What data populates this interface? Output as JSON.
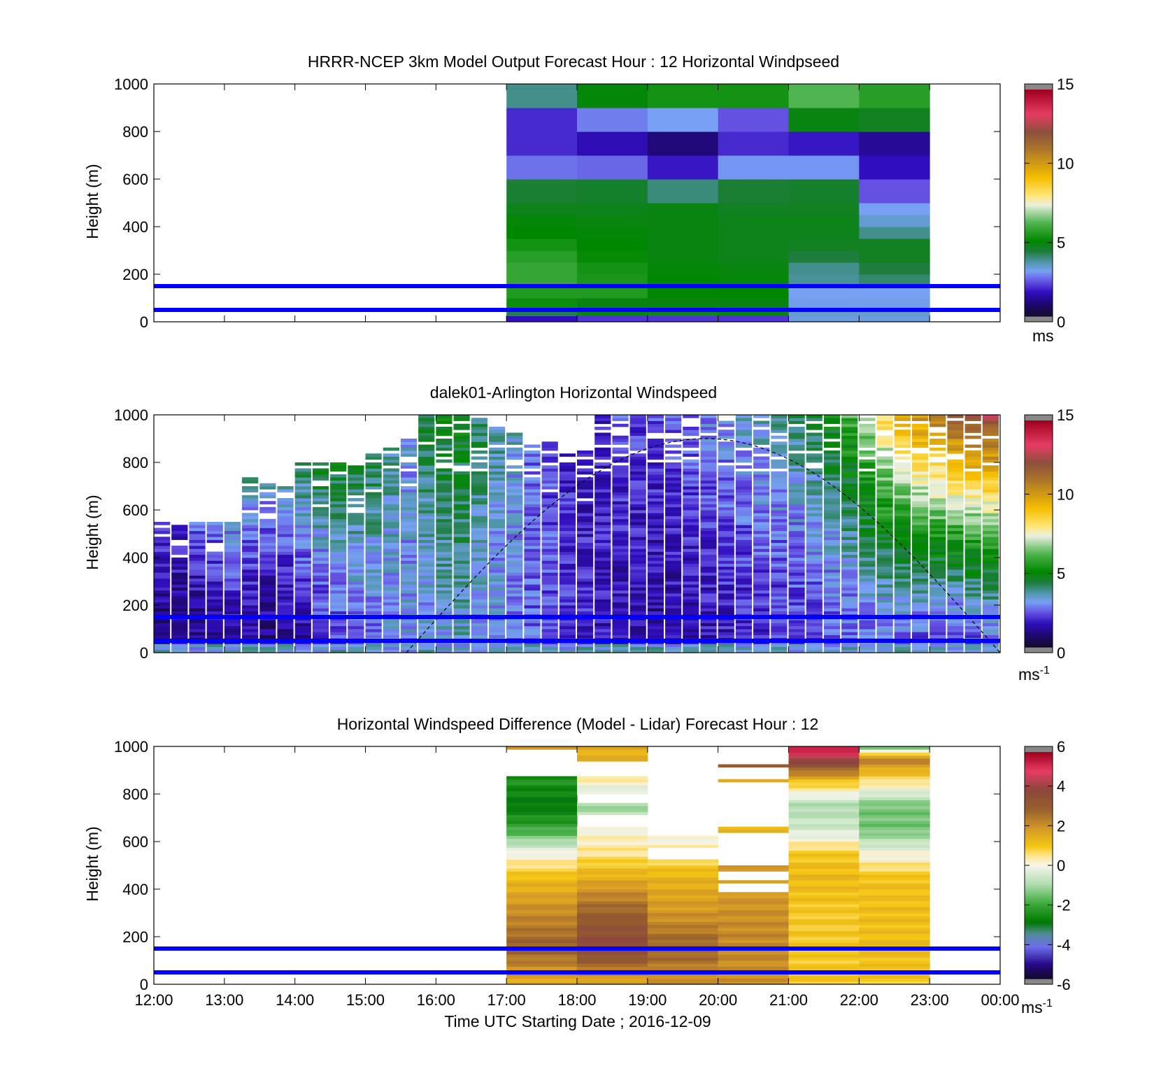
{
  "figure": {
    "xlabel": "Time UTC  Starting Date ; 2016-12-09",
    "x_tick_labels": [
      "12:00",
      "13:00",
      "14:00",
      "15:00",
      "16:00",
      "17:00",
      "18:00",
      "19:00",
      "20:00",
      "21:00",
      "22:00",
      "23:00",
      "00:00"
    ]
  },
  "colors": {
    "reference_lines": "#0000ff",
    "axes": "#000000",
    "background": "#ffffff",
    "nan_gray": "#888888"
  },
  "chart_data": [
    {
      "id": "model",
      "type": "heatmap",
      "title": "HRRR-NCEP 3km Model Output   Forecast Hour : 12 Horizontal Windpseed",
      "ylabel": "Height (m)",
      "xlabel": "",
      "xlim": [
        "12:00",
        "00:00"
      ],
      "ylim": [
        0,
        1000
      ],
      "y_ticks": [
        0,
        200,
        400,
        600,
        800,
        1000
      ],
      "reference_heights_m": [
        150,
        50
      ],
      "colorbar": {
        "range": [
          0,
          15
        ],
        "ticks": [
          0,
          5,
          10,
          15
        ],
        "unit": "ms",
        "unit_sup": ""
      },
      "time_columns": [
        {
          "start": "17:00",
          "end": "18:00"
        },
        {
          "start": "18:00",
          "end": "19:00"
        },
        {
          "start": "19:00",
          "end": "20:00"
        },
        {
          "start": "20:00",
          "end": "21:00"
        },
        {
          "start": "21:00",
          "end": "22:00"
        },
        {
          "start": "22:00",
          "end": "23:00"
        }
      ],
      "height_bins_m": [
        [
          0,
          25
        ],
        [
          25,
          50
        ],
        [
          50,
          100
        ],
        [
          100,
          150
        ],
        [
          150,
          200
        ],
        [
          200,
          250
        ],
        [
          250,
          300
        ],
        [
          300,
          350
        ],
        [
          350,
          400
        ],
        [
          400,
          450
        ],
        [
          450,
          500
        ],
        [
          500,
          600
        ],
        [
          600,
          700
        ],
        [
          700,
          800
        ],
        [
          800,
          900
        ],
        [
          900,
          1000
        ]
      ],
      "values_ms": [
        [
          1.6,
          2.0,
          2.0,
          2.0,
          3.2,
          3.2
        ],
        [
          4.2,
          4.8,
          4.6,
          4.8,
          3.3,
          3.3
        ],
        [
          5.2,
          4.8,
          4.8,
          4.8,
          3.1,
          3.1
        ],
        [
          5.5,
          5.5,
          5.0,
          5.0,
          3.0,
          3.0
        ],
        [
          5.8,
          5.4,
          5.0,
          4.9,
          3.7,
          4.0
        ],
        [
          5.8,
          5.3,
          4.9,
          4.8,
          3.8,
          4.3
        ],
        [
          5.6,
          5.1,
          4.8,
          4.7,
          4.3,
          4.6
        ],
        [
          5.3,
          5.0,
          4.8,
          4.7,
          4.6,
          4.6
        ],
        [
          5.0,
          4.9,
          4.8,
          4.7,
          4.7,
          3.8
        ],
        [
          4.9,
          4.8,
          4.8,
          4.7,
          4.7,
          3.3
        ],
        [
          4.7,
          4.7,
          4.8,
          4.6,
          4.6,
          3.0
        ],
        [
          4.4,
          4.5,
          3.9,
          4.4,
          4.5,
          2.3
        ],
        [
          2.6,
          2.5,
          1.7,
          2.9,
          2.9,
          1.6
        ],
        [
          1.9,
          1.5,
          0.9,
          1.9,
          1.7,
          1.2
        ],
        [
          1.9,
          2.7,
          3.0,
          2.3,
          4.8,
          4.6
        ],
        [
          3.8,
          4.9,
          5.3,
          5.3,
          6.2,
          5.6
        ]
      ]
    },
    {
      "id": "lidar",
      "type": "heatmap",
      "title": "dalek01-Arlington  Horizontal Windspeed",
      "ylabel": "Height (m)",
      "xlabel": "",
      "xlim": [
        "12:00",
        "00:00"
      ],
      "ylim": [
        0,
        1000
      ],
      "y_ticks": [
        0,
        200,
        400,
        600,
        800,
        1000
      ],
      "reference_heights_m": [
        150,
        50
      ],
      "colorbar": {
        "range": [
          0,
          15
        ],
        "ticks": [
          0,
          5,
          10,
          15
        ],
        "unit": "ms",
        "unit_sup": "-1"
      },
      "dashed_curve": "solar arc, peaks near 900 m around 19:50, meets 0 m near 15:35 and 00:00",
      "top_of_data_m": [
        540,
        530,
        550,
        560,
        540,
        730,
        710,
        700,
        790,
        800,
        790,
        780,
        840,
        860,
        900,
        1000,
        1000,
        1000,
        990,
        960,
        920,
        870,
        880,
        860,
        840,
        1000,
        1000,
        1000,
        1000,
        1000,
        1000,
        1000,
        1000,
        1000,
        1000,
        1000,
        1000,
        1000,
        1000,
        1000,
        1000,
        1000,
        1000,
        1000,
        1000,
        1000,
        1000,
        1000
      ],
      "wind_profile_ms": {
        "surface": [
          0.8,
          0.8,
          1.0,
          1.2,
          1.4,
          1.2,
          0.9,
          1.0,
          1.3,
          1.8,
          2.2,
          2.5,
          2.6,
          2.8,
          3.0,
          2.9,
          3.2,
          3.4,
          3.0,
          2.8,
          2.6,
          2.4,
          2.3,
          2.0,
          1.9,
          1.6,
          1.5,
          1.4,
          1.2,
          1.3,
          1.4,
          1.5,
          1.6,
          1.7,
          1.8,
          1.9,
          2.0,
          2.1,
          2.2,
          2.3,
          2.4,
          2.5,
          2.3,
          2.2,
          2.1,
          2.0,
          2.2,
          2.3
        ],
        "top": [
          2.2,
          2.0,
          2.4,
          2.8,
          3.0,
          3.6,
          3.3,
          3.4,
          4.2,
          4.6,
          4.7,
          4.4,
          4.5,
          3.8,
          3.0,
          4.4,
          4.7,
          4.8,
          4.2,
          3.6,
          3.2,
          2.6,
          2.2,
          1.8,
          1.6,
          1.9,
          2.2,
          2.1,
          2.3,
          2.5,
          2.7,
          2.9,
          3.1,
          3.3,
          3.6,
          3.8,
          4.0,
          4.4,
          5.0,
          6.0,
          7.2,
          8.5,
          9.8,
          10.5,
          11.2,
          12.0,
          12.4,
          12.8
        ]
      }
    },
    {
      "id": "difference",
      "type": "heatmap",
      "title": "Horizontal Windspeed Difference (Model - Lidar) Forecast Hour : 12",
      "ylabel": "Height (m)",
      "xlabel": "Time UTC  Starting Date ; 2016-12-09",
      "xlim": [
        "12:00",
        "00:00"
      ],
      "ylim": [
        0,
        1000
      ],
      "y_ticks": [
        0,
        200,
        400,
        600,
        800,
        1000
      ],
      "reference_heights_m": [
        150,
        50
      ],
      "colorbar": {
        "range": [
          -6,
          6
        ],
        "ticks": [
          -6,
          -4,
          -2,
          0,
          2,
          4,
          6
        ],
        "unit": "ms",
        "unit_sup": "-1"
      },
      "time_columns": [
        {
          "start": "17:00",
          "end": "18:00"
        },
        {
          "start": "18:00",
          "end": "19:00"
        },
        {
          "start": "19:00",
          "end": "20:00"
        },
        {
          "start": "20:00",
          "end": "21:00"
        },
        {
          "start": "21:00",
          "end": "22:00"
        },
        {
          "start": "22:00",
          "end": "23:00"
        }
      ],
      "profile_points_m": [
        0,
        150,
        300,
        450,
        550,
        650,
        750,
        850,
        950,
        1000
      ],
      "profiles_ms": [
        [
          1.5,
          3.0,
          2.2,
          1.2,
          0.0,
          -2.0,
          -3.0,
          -2.5,
          null,
          1.8
        ],
        [
          1.5,
          4.0,
          3.0,
          1.5,
          0.5,
          0.1,
          -1.2,
          0.2,
          1.5,
          null
        ],
        [
          2.0,
          3.0,
          2.0,
          1.4,
          0.5,
          -0.2,
          null,
          null,
          null,
          null
        ],
        [
          2.0,
          2.3,
          2.1,
          1.8,
          null,
          1.5,
          null,
          1.5,
          3.5,
          null
        ],
        [
          1.0,
          1.0,
          1.0,
          1.3,
          1.0,
          -0.5,
          -1.0,
          1.0,
          4.5,
          5.8
        ],
        [
          1.0,
          1.2,
          1.2,
          1.1,
          0.0,
          -1.5,
          -1.5,
          0.5,
          2.5,
          -2.0
        ]
      ],
      "empty_bands_m": [
        [
          [
            880,
            985
          ]
        ],
        [
          [
            880,
            935
          ],
          [
            760,
            800
          ],
          [
            660,
            710
          ]
        ],
        [
          [
            620,
            1000
          ],
          [
            530,
            570
          ]
        ],
        [
          [
            860,
            910
          ],
          [
            660,
            850
          ],
          [
            500,
            640
          ],
          [
            440,
            470
          ],
          [
            390,
            420
          ],
          [
            930,
            1000
          ]
        ],
        [],
        []
      ]
    }
  ]
}
